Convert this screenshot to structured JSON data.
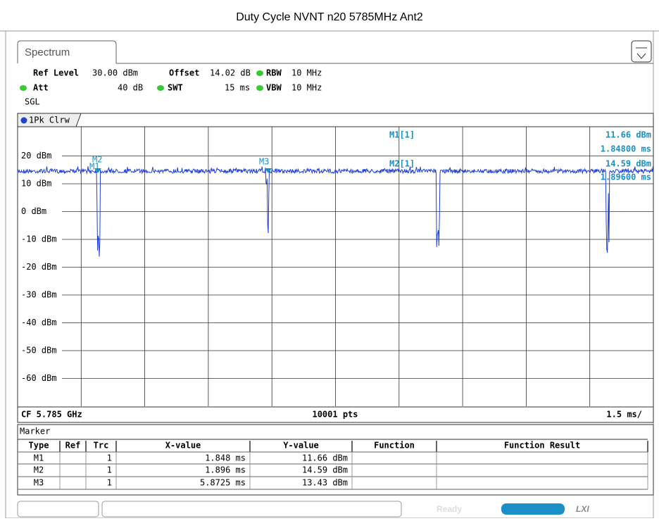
{
  "title": "Duty Cycle NVNT n20 5785MHz Ant2",
  "tab": "Spectrum",
  "settings": {
    "ref_level_label": "Ref Level",
    "ref_level": "30.00 dBm",
    "offset_label": "Offset",
    "offset": "14.02 dB",
    "rbw_label": "RBW",
    "rbw": "10 MHz",
    "att_label": "Att",
    "att": "40 dB",
    "swt_label": "SWT",
    "swt": "15 ms",
    "vbw_label": "VBW",
    "vbw": "10 MHz",
    "mode": "SGL"
  },
  "trace_label": "1Pk Clrw",
  "y_labels": [
    "20 dBm",
    "10 dBm",
    "0 dBm",
    "-10 dBm",
    "-20 dBm",
    "-30 dBm",
    "-40 dBm",
    "-50 dBm",
    "-60 dBm"
  ],
  "plot_markers": [
    "M2",
    "M1",
    "M3"
  ],
  "readout": {
    "m1": "M1[1]",
    "m1_y": "11.66 dBm",
    "m1_x": "1.84800 ms",
    "m2": "M2[1]",
    "m2_y": "14.59 dBm",
    "m2_x": "1.89600 ms"
  },
  "footer": {
    "cf": "CF 5.785 GHz",
    "pts": "10001 pts",
    "span": "1.5 ms/"
  },
  "marker_table": {
    "title": "Marker",
    "headers": [
      "Type",
      "Ref",
      "Trc",
      "X-value",
      "Y-value",
      "Function",
      "Function Result"
    ],
    "rows": [
      [
        "M1",
        "",
        "1",
        "1.848 ms",
        "11.66 dBm",
        "",
        ""
      ],
      [
        "M2",
        "",
        "1",
        "1.896 ms",
        "14.59 dBm",
        "",
        ""
      ],
      [
        "M3",
        "",
        "1",
        "5.8725 ms",
        "13.43 dBm",
        "",
        ""
      ]
    ]
  },
  "status": {
    "ready": "Ready",
    "lxi": "LXI"
  }
}
